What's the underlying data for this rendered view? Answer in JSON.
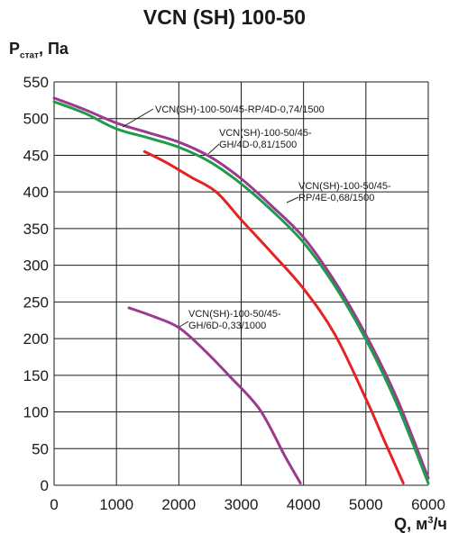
{
  "chart_data": {
    "type": "line",
    "title": "VCN (SH) 100-50",
    "ylabel": {
      "main": "P",
      "sub": "стат",
      "tail": ", Па"
    },
    "xlabel": {
      "main": "Q, м",
      "sup": "3",
      "tail": "/ч"
    },
    "xlim": [
      0,
      6000
    ],
    "ylim": [
      0,
      550
    ],
    "x_ticks": [
      0,
      1000,
      2000,
      3000,
      4000,
      5000,
      6000
    ],
    "y_ticks": [
      0,
      50,
      100,
      150,
      200,
      250,
      300,
      350,
      400,
      450,
      500,
      550
    ],
    "grid": true,
    "series": [
      {
        "name": "VCN(SH)-100-50/45-RP/4D-0,74/1500",
        "color": "#9b3a8f",
        "x": [
          0,
          500,
          1000,
          1500,
          2000,
          2500,
          3000,
          3500,
          4000,
          4500,
          5000,
          5500,
          6000
        ],
        "y": [
          528,
          512,
          494,
          481,
          468,
          448,
          418,
          380,
          338,
          278,
          205,
          118,
          10
        ]
      },
      {
        "name": "VCN(SH)-100-50/45-GH/4D-0,81/1500",
        "color": "#1e9c4a",
        "x": [
          0,
          500,
          1000,
          1500,
          2000,
          2500,
          3000,
          3500,
          4000,
          4500,
          5000,
          5500,
          6000
        ],
        "y": [
          523,
          507,
          486,
          474,
          461,
          441,
          411,
          374,
          331,
          272,
          199,
          110,
          3
        ]
      },
      {
        "name": "VCN(SH)-100-50/45-RP/4E-0,68/1500",
        "color": "#e42323",
        "x": [
          1450,
          1800,
          2200,
          2600,
          3000,
          3500,
          4000,
          4500,
          5000,
          5300,
          5600
        ],
        "y": [
          455,
          440,
          420,
          400,
          362,
          316,
          268,
          206,
          118,
          60,
          3
        ]
      },
      {
        "name": "VCN(SH)-100-50/45-GH/6D-0,33/1000",
        "color": "#9b3a8f",
        "x": [
          1200,
          1600,
          2000,
          2400,
          2800,
          3300,
          3700,
          3950
        ],
        "y": [
          242,
          230,
          215,
          185,
          150,
          103,
          40,
          3
        ]
      }
    ],
    "annotations": [
      {
        "lines": [
          "VCN(SH)-100-50/45-RP/4D-0,74/1500"
        ]
      },
      {
        "lines": [
          "VCN(SH)-100-50/45-",
          "GH/4D-0,81/1500"
        ]
      },
      {
        "lines": [
          "VCN(SH)-100-50/45-",
          "RP/4E-0,68/1500"
        ]
      },
      {
        "lines": [
          "VCN(SH)-100-50/45-",
          "GH/6D-0,33/1000"
        ]
      }
    ]
  }
}
